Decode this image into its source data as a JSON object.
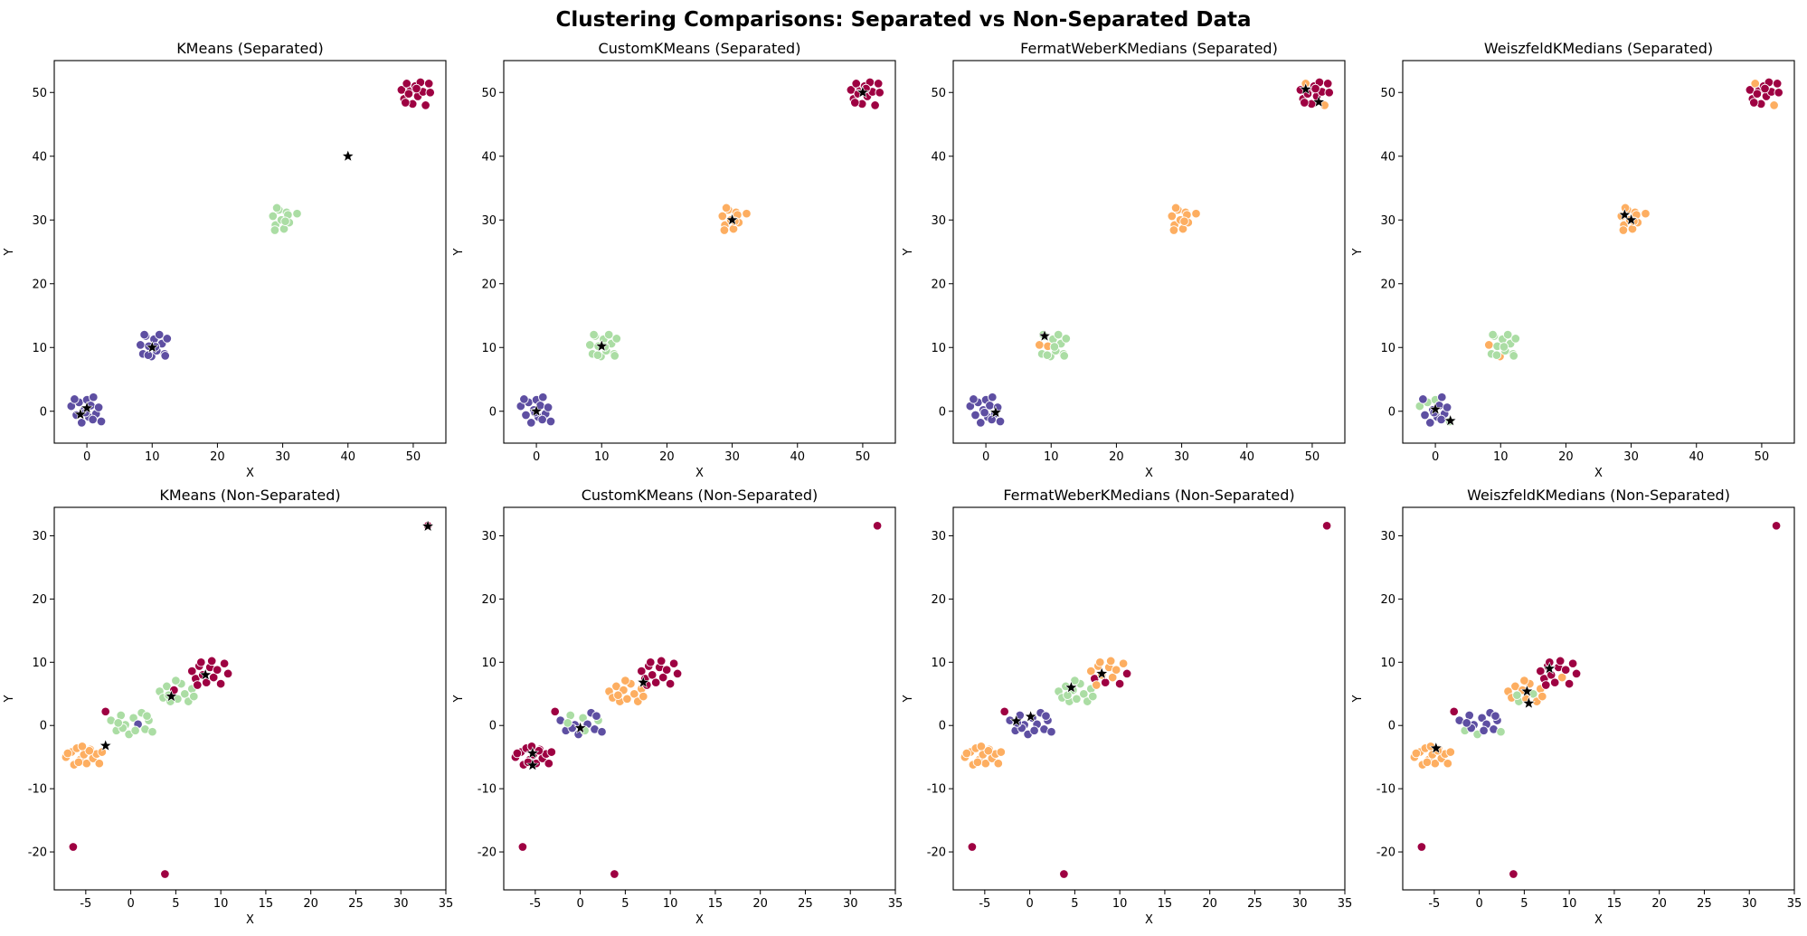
{
  "figure": {
    "title": "Clustering Comparisons: Separated vs Non-Separated Data",
    "colors": {
      "c0": "#5e4fa2",
      "c1": "#abdda4",
      "c2": "#fdae61",
      "c3": "#9e0142",
      "centroid": "#000000"
    }
  },
  "chart_data": [
    {
      "type": "scatter",
      "title": "KMeans (Separated)",
      "xlabel": "X",
      "ylabel": "Y",
      "xlim": [
        -5,
        55
      ],
      "ylim": [
        -5,
        55
      ],
      "xticks": [
        0,
        10,
        20,
        30,
        40,
        50
      ],
      "yticks": [
        0,
        10,
        20,
        30,
        40,
        50
      ],
      "dataset": "separated",
      "cluster_colors": [
        "c0",
        "c0",
        "c1",
        "c3"
      ],
      "overrides": [],
      "centroids": [
        [
          0,
          0.5
        ],
        [
          -1,
          -0.5
        ],
        [
          10,
          10
        ],
        [
          40,
          40
        ]
      ]
    },
    {
      "type": "scatter",
      "title": "CustomKMeans (Separated)",
      "xlabel": "X",
      "ylabel": "Y",
      "xlim": [
        -5,
        55
      ],
      "ylim": [
        -5,
        55
      ],
      "xticks": [
        0,
        10,
        20,
        30,
        40,
        50
      ],
      "yticks": [
        0,
        10,
        20,
        30,
        40,
        50
      ],
      "dataset": "separated",
      "cluster_colors": [
        "c0",
        "c1",
        "c2",
        "c3"
      ],
      "overrides": [],
      "centroids": [
        [
          0,
          0
        ],
        [
          10,
          10.2
        ],
        [
          30,
          30
        ],
        [
          50,
          50
        ]
      ]
    },
    {
      "type": "scatter",
      "title": "FermatWeberKMedians (Separated)",
      "xlabel": "X",
      "ylabel": "Y",
      "xlim": [
        -5,
        55
      ],
      "ylim": [
        -5,
        55
      ],
      "xticks": [
        0,
        10,
        20,
        30,
        40,
        50
      ],
      "yticks": [
        0,
        10,
        20,
        30,
        40,
        50
      ],
      "dataset": "separated",
      "cluster_colors": [
        "c0",
        "c1",
        "c2",
        "c3"
      ],
      "overrides": [
        [
          1,
          0,
          "c2"
        ],
        [
          1,
          3,
          "c2"
        ],
        [
          3,
          2,
          "c2"
        ],
        [
          3,
          9,
          "c2"
        ]
      ],
      "centroids": [
        [
          1.5,
          -0.2
        ],
        [
          9,
          11.8
        ],
        [
          49,
          50.5
        ],
        [
          51,
          48.5
        ]
      ]
    },
    {
      "type": "scatter",
      "title": "WeiszfeldKMedians (Separated)",
      "xlabel": "X",
      "ylabel": "Y",
      "xlim": [
        -5,
        55
      ],
      "ylim": [
        -5,
        55
      ],
      "xticks": [
        0,
        10,
        20,
        30,
        40,
        50
      ],
      "yticks": [
        0,
        10,
        20,
        30,
        40,
        50
      ],
      "dataset": "separated",
      "cluster_colors": [
        "c0",
        "c1",
        "c2",
        "c3"
      ],
      "overrides": [
        [
          0,
          0,
          "c1"
        ],
        [
          0,
          2,
          "c1"
        ],
        [
          0,
          5,
          "c1"
        ],
        [
          0,
          11,
          "c1"
        ],
        [
          1,
          0,
          "c2"
        ],
        [
          1,
          4,
          "c2"
        ],
        [
          3,
          2,
          "c2"
        ],
        [
          3,
          9,
          "c2"
        ]
      ],
      "centroids": [
        [
          0,
          0.3
        ],
        [
          2.3,
          -1.5
        ],
        [
          29,
          30.8
        ],
        [
          30,
          30
        ]
      ]
    },
    {
      "type": "scatter",
      "title": "KMeans (Non-Separated)",
      "xlabel": "X",
      "ylabel": "Y",
      "xlim": [
        -8.5,
        35
      ],
      "ylim": [
        -26,
        34.5
      ],
      "xticks": [
        -5,
        0,
        5,
        10,
        15,
        20,
        25,
        30,
        35
      ],
      "yticks": [
        -20,
        -10,
        0,
        10,
        20,
        30
      ],
      "dataset": "non_separated",
      "cluster_colors": [
        "c2",
        "c1",
        "c1",
        "c3"
      ],
      "overrides": [
        [
          1,
          6,
          "c0"
        ],
        [
          2,
          4,
          "c3"
        ]
      ],
      "outlier_color": "c3",
      "centroids": [
        [
          -2.8,
          -3.2
        ],
        [
          4.5,
          4.6
        ],
        [
          8.3,
          8
        ],
        [
          33,
          31.5
        ]
      ]
    },
    {
      "type": "scatter",
      "title": "CustomKMeans (Non-Separated)",
      "xlabel": "X",
      "ylabel": "Y",
      "xlim": [
        -8.5,
        35
      ],
      "ylim": [
        -26,
        34.5
      ],
      "xticks": [
        -5,
        0,
        5,
        10,
        15,
        20,
        25,
        30,
        35
      ],
      "yticks": [
        -20,
        -10,
        0,
        10,
        20,
        30
      ],
      "dataset": "non_separated",
      "cluster_colors": [
        "c3",
        "c0",
        "c2",
        "c3"
      ],
      "overrides": [
        [
          1,
          2,
          "c1"
        ],
        [
          1,
          5,
          "c1"
        ],
        [
          1,
          9,
          "c1"
        ],
        [
          1,
          12,
          "c1"
        ],
        [
          1,
          14,
          "c1"
        ]
      ],
      "outlier_color": "c3",
      "centroids": [
        [
          -5.3,
          -4.4
        ],
        [
          -5.3,
          -6.3
        ],
        [
          0,
          -0.4
        ],
        [
          7,
          6.8
        ]
      ]
    },
    {
      "type": "scatter",
      "title": "FermatWeberKMedians (Non-Separated)",
      "xlabel": "X",
      "ylabel": "Y",
      "xlim": [
        -8.5,
        35
      ],
      "ylim": [
        -26,
        34.5
      ],
      "xticks": [
        -5,
        0,
        5,
        10,
        15,
        20,
        25,
        30,
        35
      ],
      "yticks": [
        -20,
        -10,
        0,
        10,
        20,
        30
      ],
      "dataset": "non_separated",
      "cluster_colors": [
        "c2",
        "c0",
        "c1",
        "c2"
      ],
      "overrides": [
        [
          3,
          1,
          "c3"
        ],
        [
          3,
          4,
          "c3"
        ],
        [
          3,
          8,
          "c3"
        ],
        [
          3,
          12,
          "c3"
        ]
      ],
      "outlier_color": "c3",
      "centroids": [
        [
          -1.5,
          0.7
        ],
        [
          0.1,
          1.4
        ],
        [
          4.6,
          6
        ],
        [
          8,
          8.2
        ]
      ]
    },
    {
      "type": "scatter",
      "title": "WeiszfeldKMedians (Non-Separated)",
      "xlabel": "X",
      "ylabel": "Y",
      "xlim": [
        -8.5,
        35
      ],
      "ylim": [
        -26,
        34.5
      ],
      "xticks": [
        -5,
        0,
        5,
        10,
        15,
        20,
        25,
        30,
        35
      ],
      "yticks": [
        -20,
        -10,
        0,
        10,
        20,
        30
      ],
      "dataset": "non_separated",
      "cluster_colors": [
        "c2",
        "c0",
        "c2",
        "c3"
      ],
      "overrides": [
        [
          1,
          1,
          "c1"
        ],
        [
          1,
          4,
          "c1"
        ],
        [
          1,
          10,
          "c1"
        ],
        [
          2,
          3,
          "c1"
        ],
        [
          2,
          7,
          "c1"
        ],
        [
          2,
          11,
          "c1"
        ],
        [
          3,
          6,
          "c2"
        ]
      ],
      "outlier_color": "c3",
      "centroids": [
        [
          -4.8,
          -3.6
        ],
        [
          5.3,
          5.4
        ],
        [
          5.5,
          3.5
        ],
        [
          7.8,
          9
        ]
      ]
    }
  ],
  "datasets": {
    "separated": [
      [
        [
          -2.4,
          0.8
        ],
        [
          -1.6,
          -0.6
        ],
        [
          -1.2,
          1.4
        ],
        [
          -0.8,
          -1.8
        ],
        [
          -0.4,
          0.2
        ],
        [
          0,
          1.8
        ],
        [
          0.3,
          -0.9
        ],
        [
          0.6,
          0.9
        ],
        [
          1,
          2.2
        ],
        [
          1.4,
          -0.4
        ],
        [
          1.8,
          0.6
        ],
        [
          2.2,
          -1.6
        ],
        [
          -1.9,
          1.9
        ],
        [
          0.9,
          -1.3
        ],
        [
          -0.2,
          -0.2
        ]
      ],
      [
        [
          8.2,
          10.4
        ],
        [
          8.6,
          9
        ],
        [
          9,
          11.8
        ],
        [
          9.5,
          10.2
        ],
        [
          9.9,
          8.6
        ],
        [
          10.3,
          11.3
        ],
        [
          10.7,
          9.5
        ],
        [
          11.1,
          12
        ],
        [
          11.5,
          10.6
        ],
        [
          11.9,
          9
        ],
        [
          12.3,
          11.4
        ],
        [
          8.8,
          12
        ],
        [
          10.5,
          10.1
        ],
        [
          12,
          8.7
        ],
        [
          9.4,
          8.8
        ]
      ],
      [
        [
          28.5,
          30.6
        ],
        [
          28.9,
          29.2
        ],
        [
          29.4,
          31.6
        ],
        [
          29.8,
          30
        ],
        [
          30.2,
          28.6
        ],
        [
          30.6,
          31.2
        ],
        [
          31,
          29.6
        ],
        [
          29.1,
          31.9
        ],
        [
          30.8,
          30.8
        ],
        [
          32.2,
          31
        ],
        [
          28.8,
          28.4
        ],
        [
          30.4,
          29.8
        ]
      ],
      [
        [
          48.2,
          50.4
        ],
        [
          48.6,
          49
        ],
        [
          49,
          51.4
        ],
        [
          49.5,
          50.2
        ],
        [
          49.9,
          48.2
        ],
        [
          50.3,
          51
        ],
        [
          50.7,
          49.4
        ],
        [
          51.1,
          51.6
        ],
        [
          51.5,
          50.1
        ],
        [
          51.9,
          48
        ],
        [
          48.8,
          48.4
        ],
        [
          52.4,
          51.4
        ],
        [
          50.5,
          50.6
        ],
        [
          52.6,
          50
        ],
        [
          49.3,
          49.8
        ]
      ]
    ],
    "non_separated": [
      [
        [
          -7.2,
          -5
        ],
        [
          -6.6,
          -4.2
        ],
        [
          -6.3,
          -6.2
        ],
        [
          -6,
          -3.6
        ],
        [
          -5.6,
          -5.4
        ],
        [
          -5.2,
          -4.6
        ],
        [
          -4.9,
          -6
        ],
        [
          -4.5,
          -3.8
        ],
        [
          -4.2,
          -5.2
        ],
        [
          -3.8,
          -4.5
        ],
        [
          -3.5,
          -6
        ],
        [
          -5.8,
          -5.8
        ],
        [
          -4.6,
          -4
        ],
        [
          -7,
          -4.4
        ],
        [
          -5.4,
          -3.3
        ],
        [
          -3.2,
          -4.2
        ]
      ],
      [
        [
          -2.2,
          0.8
        ],
        [
          -1.6,
          -0.8
        ],
        [
          -1.1,
          1.6
        ],
        [
          -0.6,
          0.1
        ],
        [
          -0.2,
          -1.4
        ],
        [
          0.3,
          1.2
        ],
        [
          0.8,
          0.2
        ],
        [
          1.2,
          2
        ],
        [
          1.6,
          -0.6
        ],
        [
          2,
          0.8
        ],
        [
          2.4,
          -1
        ],
        [
          -0.9,
          -0.4
        ],
        [
          0.5,
          -0.8
        ],
        [
          1.8,
          1.5
        ],
        [
          -1.4,
          0.4
        ]
      ],
      [
        [
          3.2,
          5.4
        ],
        [
          3.6,
          4.4
        ],
        [
          4,
          6.2
        ],
        [
          4.4,
          3.8
        ],
        [
          4.8,
          5.6
        ],
        [
          5.2,
          4.2
        ],
        [
          5.6,
          6.6
        ],
        [
          6,
          5
        ],
        [
          6.4,
          3.8
        ],
        [
          6.8,
          5.8
        ],
        [
          5,
          7.1
        ],
        [
          4.2,
          4.8
        ],
        [
          7,
          4.6
        ]
      ],
      [
        [
          6.8,
          8.6
        ],
        [
          7.2,
          7.4
        ],
        [
          7.6,
          9.4
        ],
        [
          8,
          8
        ],
        [
          8.4,
          6.8
        ],
        [
          8.8,
          9.2
        ],
        [
          9.2,
          7.6
        ],
        [
          9.6,
          8.8
        ],
        [
          10,
          6.6
        ],
        [
          10.4,
          9.8
        ],
        [
          7.8,
          10
        ],
        [
          9,
          10.2
        ],
        [
          10.8,
          8.2
        ],
        [
          7.4,
          6.4
        ]
      ]
    ],
    "non_separated_outliers": [
      [
        -2.8,
        2.2
      ],
      [
        -6.4,
        -19.2
      ],
      [
        3.8,
        -23.5
      ],
      [
        33,
        31.6
      ]
    ]
  }
}
